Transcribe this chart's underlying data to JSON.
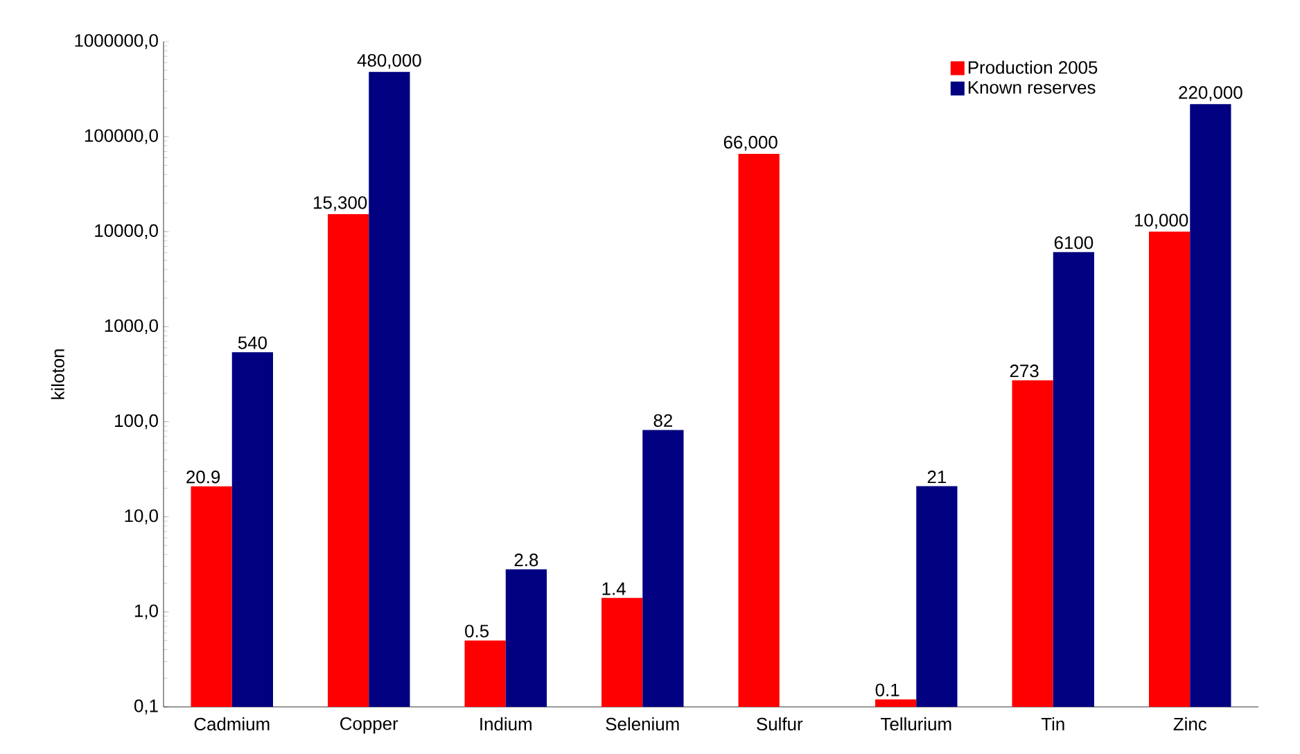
{
  "chart_data": {
    "type": "bar",
    "ylabel": "kiloton",
    "log": true,
    "legend": "top right",
    "grid": false,
    "categories": [
      "Cadmium",
      "Copper",
      "Indium",
      "Selenium",
      "Sulfur",
      "Tellurium",
      "Tin",
      "Zinc"
    ],
    "ylim": [
      0.1,
      1000000
    ],
    "yticks": [
      {
        "value": 0.1,
        "label": "0,1"
      },
      {
        "value": 1,
        "label": "1,0"
      },
      {
        "value": 10,
        "label": "10,0"
      },
      {
        "value": 100,
        "label": "100,0"
      },
      {
        "value": 1000,
        "label": "1000,0"
      },
      {
        "value": 10000,
        "label": "10000,0"
      },
      {
        "value": 100000,
        "label": "100000,0"
      },
      {
        "value": 1000000,
        "label": "1000000,0"
      }
    ],
    "series": [
      {
        "name": "Production 2005",
        "color": "#ff0000",
        "values": [
          20.9,
          15300,
          0.5,
          1.4,
          66000,
          0.12,
          273,
          10000
        ],
        "value_labels": [
          "20.9",
          "15,300",
          "0.5",
          "1.4",
          "66,000",
          "0.1",
          "273",
          "10,000"
        ]
      },
      {
        "name": "Known reserves",
        "color": "#000080",
        "values": [
          540,
          480000,
          2.8,
          82,
          null,
          21,
          6100,
          220000
        ],
        "value_labels": [
          "540",
          "480,000",
          "2.8",
          "82",
          null,
          "21",
          "6100",
          "220,000"
        ]
      }
    ]
  }
}
